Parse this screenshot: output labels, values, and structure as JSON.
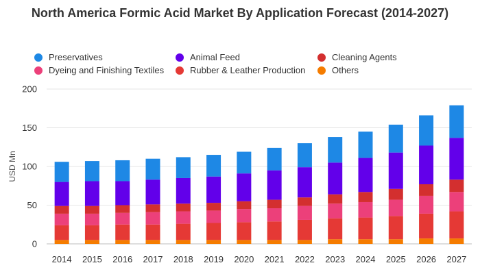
{
  "chart_data": {
    "type": "bar",
    "stacked": true,
    "title": "North America Formic Acid Market By Application Forecast (2014-2027)",
    "xlabel": "",
    "ylabel": "USD Mn",
    "ylim": [
      0,
      200
    ],
    "yticks": [
      "0",
      "50",
      "100",
      "150",
      "200"
    ],
    "grid": true,
    "legend_position": "top",
    "categories": [
      "2014",
      "2015",
      "2016",
      "2017",
      "2018",
      "2019",
      "2020",
      "2021",
      "2022",
      "2023",
      "2024",
      "2025",
      "2026",
      "2027"
    ],
    "series": [
      {
        "name": "Others",
        "color": "#f57c00",
        "values": [
          5,
          5,
          5,
          5,
          5,
          5,
          5,
          5,
          5,
          6,
          6,
          6,
          7,
          7
        ]
      },
      {
        "name": "Rubber & Leather Production",
        "color": "#e53935",
        "values": [
          19,
          19,
          20,
          20,
          21,
          22,
          23,
          24,
          26,
          27,
          28,
          30,
          32,
          35
        ]
      },
      {
        "name": "Dyeing and Finishing Textiles",
        "color": "#ec407a",
        "values": [
          15,
          15,
          15,
          16,
          16,
          16,
          17,
          17,
          18,
          19,
          20,
          21,
          23,
          25
        ]
      },
      {
        "name": "Cleaning Agents",
        "color": "#d32f2f",
        "values": [
          10,
          10,
          10,
          10,
          10,
          10,
          10,
          11,
          11,
          12,
          13,
          14,
          15,
          16
        ]
      },
      {
        "name": "Animal Feed",
        "color": "#6200ea",
        "values": [
          31,
          32,
          31,
          32,
          33,
          34,
          36,
          38,
          39,
          41,
          44,
          47,
          50,
          54
        ]
      },
      {
        "name": "Preservatives",
        "color": "#1e88e5",
        "values": [
          26,
          26,
          27,
          27,
          27,
          28,
          28,
          29,
          31,
          33,
          34,
          36,
          39,
          42
        ]
      }
    ]
  },
  "legend": [
    {
      "label": "Preservatives",
      "color": "#1e88e5"
    },
    {
      "label": "Animal Feed",
      "color": "#6200ea"
    },
    {
      "label": "Cleaning Agents",
      "color": "#d32f2f"
    },
    {
      "label": "Dyeing and Finishing Textiles",
      "color": "#ec407a"
    },
    {
      "label": "Rubber & Leather Production",
      "color": "#e53935"
    },
    {
      "label": "Others",
      "color": "#f57c00"
    }
  ]
}
